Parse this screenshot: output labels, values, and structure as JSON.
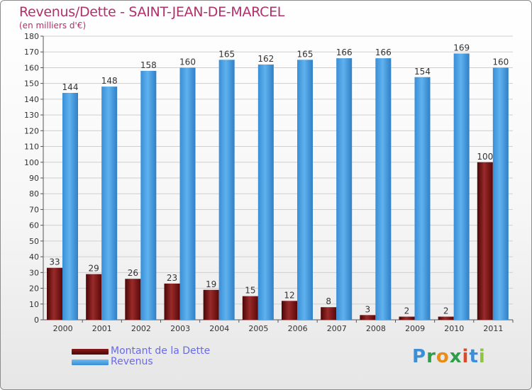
{
  "header": {
    "title": "Revenus/Dette - SAINT-JEAN-DE-MARCEL",
    "subtitle": "(en milliers d'€)"
  },
  "legend": [
    {
      "label": "Montant de la Dette",
      "color": "#6e0d0d"
    },
    {
      "label": "Revenus",
      "color": "#4fa3e3"
    }
  ],
  "brand": {
    "letters": [
      "P",
      "r",
      "o",
      "x",
      "i",
      "t",
      "i"
    ],
    "colors": [
      "#3b8fd8",
      "#2e9e4a",
      "#e88c1a",
      "#2e9e4a",
      "#d84a2a",
      "#3b8fd8",
      "#8cc63f"
    ]
  },
  "chart_data": {
    "type": "bar",
    "categories": [
      "2000",
      "2001",
      "2002",
      "2003",
      "2004",
      "2005",
      "2006",
      "2007",
      "2008",
      "2009",
      "2010",
      "2011"
    ],
    "series": [
      {
        "name": "Montant de la Dette",
        "values": [
          33,
          29,
          26,
          23,
          19,
          15,
          12,
          8,
          3,
          2,
          2,
          100
        ],
        "color": "#7a1515"
      },
      {
        "name": "Revenus",
        "values": [
          144,
          148,
          158,
          160,
          165,
          162,
          165,
          166,
          166,
          154,
          169,
          160
        ],
        "color": "#4fa3e3"
      }
    ],
    "title": "Revenus/Dette - SAINT-JEAN-DE-MARCEL",
    "ylabel": "(en milliers d'€)",
    "ylim": [
      0,
      180
    ],
    "ytick_step": 10,
    "grid": true,
    "legend_position": "bottom-left"
  }
}
